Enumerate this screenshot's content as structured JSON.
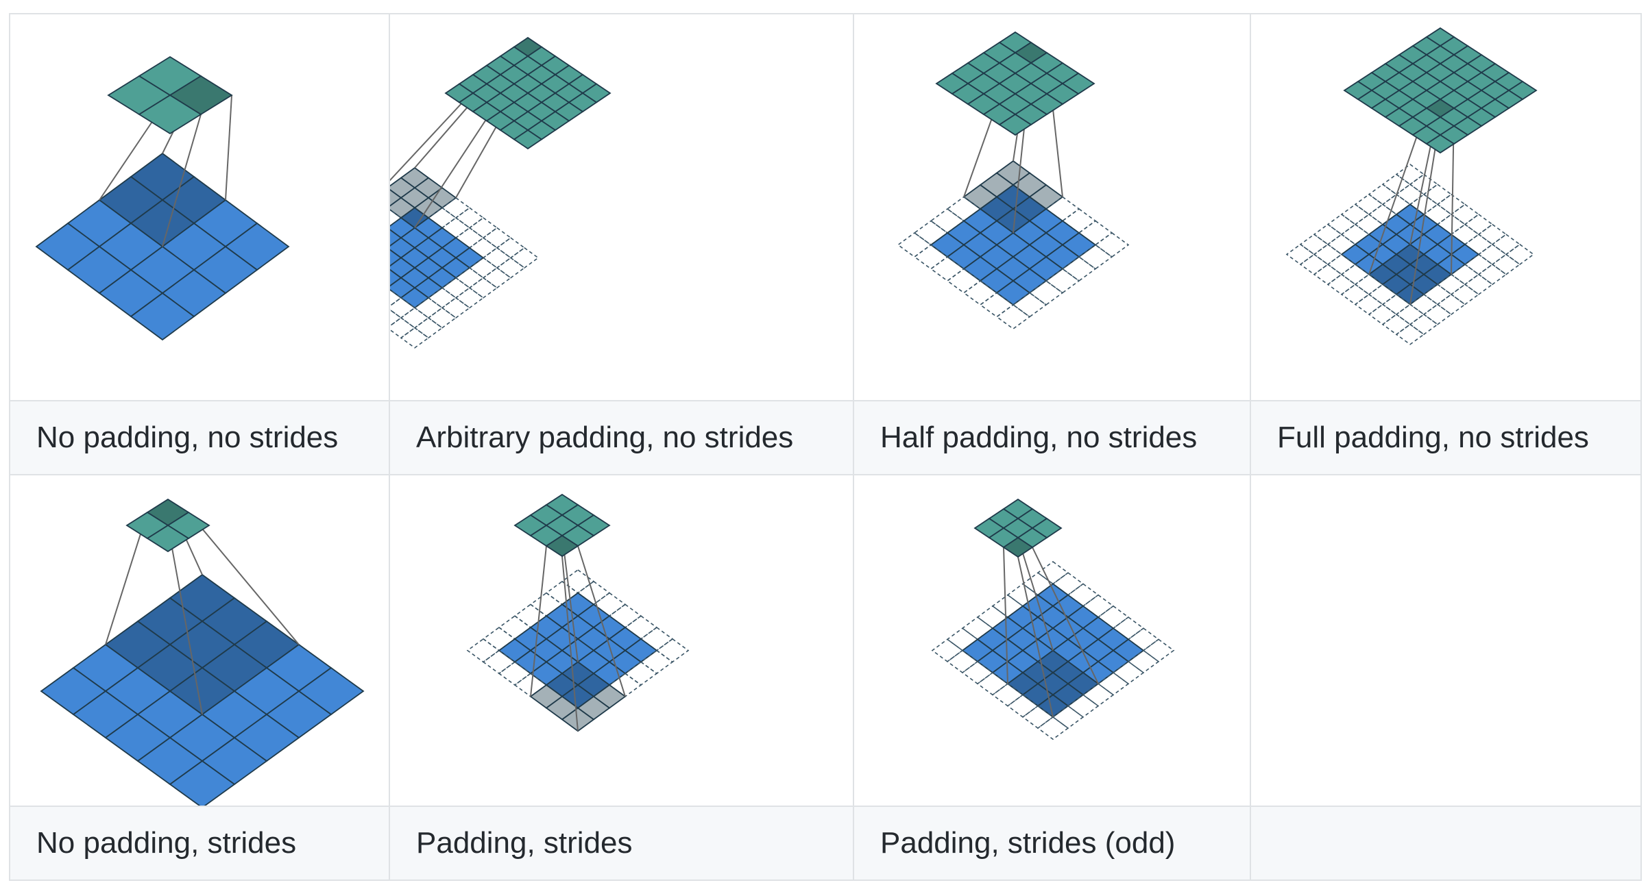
{
  "table": {
    "row1_captions": [
      "No padding, no strides",
      "Arbitrary padding, no strides",
      "Half padding, no strides",
      "Full padding, no strides"
    ],
    "row2_captions": [
      "No padding, strides",
      "Padding, strides",
      "Padding, strides (odd)",
      ""
    ]
  },
  "colors": {
    "input": "#4287d6",
    "input_shaded": "#2f65a0",
    "output": "#4fa095",
    "output_shaded": "#3a786f",
    "padding_shaded": "#a4b1b7",
    "grid_line": "#1f3a4a",
    "dashed_line": "#3a5566",
    "border": "#dfe2e5",
    "caption_bg": "#f6f8fa"
  },
  "diagrams": [
    {
      "name": "no-padding-no-strides",
      "input_size": 4,
      "padding": 0,
      "output_size": 2
    },
    {
      "name": "arbitrary-padding-no-strides",
      "input_size": 5,
      "padding": 2,
      "output_size": 6
    },
    {
      "name": "half-padding-no-strides",
      "input_size": 5,
      "padding": 1,
      "output_size": 5
    },
    {
      "name": "full-padding-no-strides",
      "input_size": 5,
      "padding": 2,
      "output_size": 7
    },
    {
      "name": "no-padding-strides",
      "input_size": 5,
      "padding": 0,
      "output_size": 2
    },
    {
      "name": "padding-strides",
      "input_size": 5,
      "padding": 1,
      "output_size": 3
    },
    {
      "name": "padding-strides-odd",
      "input_size": 6,
      "padding": 1,
      "output_size": 3
    }
  ]
}
